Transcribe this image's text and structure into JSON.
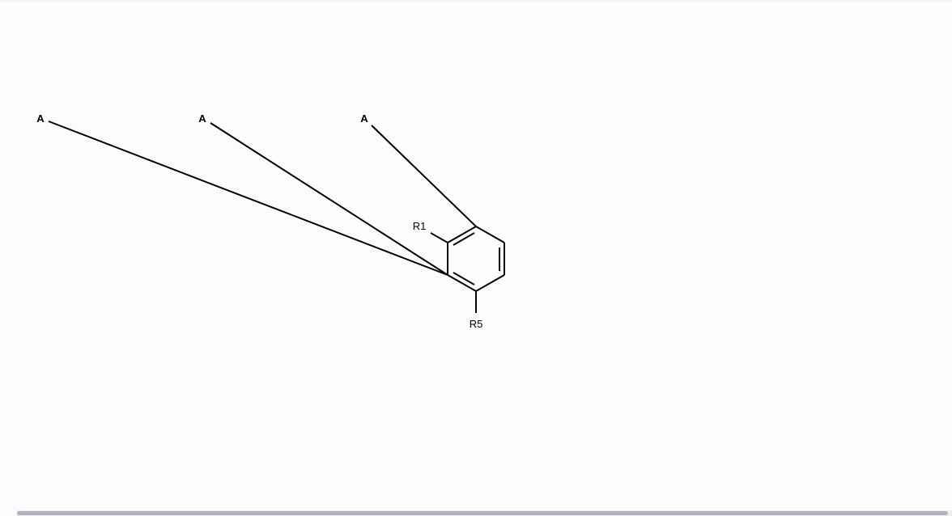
{
  "structure": {
    "attachment_labels": [
      "A",
      "A",
      "A"
    ],
    "substituent_labels": [
      "R1",
      "R5"
    ]
  },
  "scrollbar": {
    "orientation": "horizontal",
    "position": 0.0
  }
}
